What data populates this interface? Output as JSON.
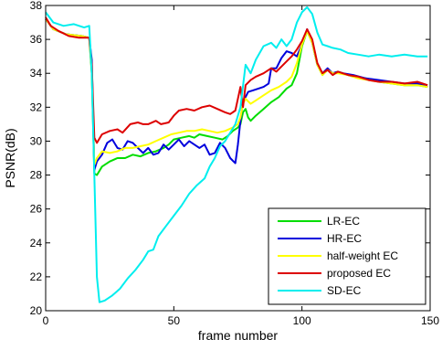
{
  "chart_data": {
    "type": "line",
    "xlabel": "frame number",
    "ylabel": "PSNR(dB)",
    "xlim": [
      0,
      150
    ],
    "ylim": [
      20,
      38
    ],
    "x_ticks": [
      0,
      50,
      100,
      150
    ],
    "y_ticks": [
      20,
      22,
      24,
      26,
      28,
      30,
      32,
      34,
      36,
      38
    ],
    "grid": false,
    "legend_position": "bottom-right",
    "series": [
      {
        "name": "LR-EC",
        "color": "#00dd00",
        "points": [
          [
            0,
            37.2
          ],
          [
            3,
            36.6
          ],
          [
            8,
            36.3
          ],
          [
            14,
            36.2
          ],
          [
            17,
            36.1
          ],
          [
            18,
            34.0
          ],
          [
            19,
            28.1
          ],
          [
            20,
            28.0
          ],
          [
            22,
            28.5
          ],
          [
            25,
            28.8
          ],
          [
            28,
            29.0
          ],
          [
            31,
            29.0
          ],
          [
            34,
            29.2
          ],
          [
            37,
            29.1
          ],
          [
            40,
            29.3
          ],
          [
            43,
            29.4
          ],
          [
            46,
            29.6
          ],
          [
            48,
            29.8
          ],
          [
            50,
            30.1
          ],
          [
            53,
            30.2
          ],
          [
            56,
            30.3
          ],
          [
            58,
            30.2
          ],
          [
            60,
            30.4
          ],
          [
            63,
            30.3
          ],
          [
            66,
            30.2
          ],
          [
            69,
            30.1
          ],
          [
            71,
            30.3
          ],
          [
            73,
            30.6
          ],
          [
            75,
            30.8
          ],
          [
            76,
            31.0
          ],
          [
            77,
            31.7
          ],
          [
            78,
            31.9
          ],
          [
            79,
            31.4
          ],
          [
            80,
            31.2
          ],
          [
            82,
            31.5
          ],
          [
            85,
            31.9
          ],
          [
            88,
            32.3
          ],
          [
            91,
            32.6
          ],
          [
            94,
            33.1
          ],
          [
            96,
            33.3
          ],
          [
            98,
            34.0
          ],
          [
            100,
            35.6
          ],
          [
            102,
            36.5
          ],
          [
            104,
            35.8
          ],
          [
            106,
            34.5
          ],
          [
            108,
            33.9
          ],
          [
            110,
            34.2
          ],
          [
            112,
            34.0
          ],
          [
            114,
            34.1
          ],
          [
            116,
            34.0
          ],
          [
            120,
            33.8
          ],
          [
            125,
            33.7
          ],
          [
            130,
            33.5
          ],
          [
            135,
            33.4
          ],
          [
            140,
            33.3
          ],
          [
            145,
            33.3
          ],
          [
            149,
            33.2
          ]
        ]
      },
      {
        "name": "HR-EC",
        "color": "#0000dd",
        "points": [
          [
            0,
            37.2
          ],
          [
            3,
            36.6
          ],
          [
            8,
            36.3
          ],
          [
            14,
            36.2
          ],
          [
            17,
            36.1
          ],
          [
            18,
            34.8
          ],
          [
            19,
            28.3
          ],
          [
            20,
            28.8
          ],
          [
            22,
            29.2
          ],
          [
            24,
            29.9
          ],
          [
            26,
            30.1
          ],
          [
            28,
            29.6
          ],
          [
            30,
            29.5
          ],
          [
            32,
            30.0
          ],
          [
            34,
            29.9
          ],
          [
            36,
            29.6
          ],
          [
            38,
            29.3
          ],
          [
            40,
            29.6
          ],
          [
            42,
            29.2
          ],
          [
            44,
            29.3
          ],
          [
            46,
            29.8
          ],
          [
            48,
            29.5
          ],
          [
            50,
            29.8
          ],
          [
            52,
            30.1
          ],
          [
            54,
            29.7
          ],
          [
            56,
            30.0
          ],
          [
            58,
            29.8
          ],
          [
            60,
            29.6
          ],
          [
            62,
            29.8
          ],
          [
            64,
            29.2
          ],
          [
            66,
            29.3
          ],
          [
            68,
            29.9
          ],
          [
            70,
            29.6
          ],
          [
            72,
            29.0
          ],
          [
            74,
            28.7
          ],
          [
            75,
            29.8
          ],
          [
            76,
            31.2
          ],
          [
            77,
            32.4
          ],
          [
            78,
            32.6
          ],
          [
            79,
            32.9
          ],
          [
            81,
            33.0
          ],
          [
            83,
            33.1
          ],
          [
            85,
            33.2
          ],
          [
            87,
            33.4
          ],
          [
            88,
            34.3
          ],
          [
            90,
            34.3
          ],
          [
            92,
            34.9
          ],
          [
            94,
            35.3
          ],
          [
            96,
            35.2
          ],
          [
            98,
            35.0
          ],
          [
            100,
            35.7
          ],
          [
            102,
            36.6
          ],
          [
            104,
            35.8
          ],
          [
            106,
            34.5
          ],
          [
            108,
            34.0
          ],
          [
            110,
            34.3
          ],
          [
            112,
            34.0
          ],
          [
            114,
            34.1
          ],
          [
            116,
            34.0
          ],
          [
            120,
            33.9
          ],
          [
            125,
            33.7
          ],
          [
            130,
            33.6
          ],
          [
            135,
            33.5
          ],
          [
            140,
            33.4
          ],
          [
            145,
            33.4
          ],
          [
            149,
            33.2
          ]
        ]
      },
      {
        "name": "half-weight EC",
        "color": "#ffff00",
        "points": [
          [
            0,
            37.2
          ],
          [
            3,
            36.6
          ],
          [
            8,
            36.3
          ],
          [
            14,
            36.2
          ],
          [
            17,
            36.1
          ],
          [
            18,
            34.3
          ],
          [
            19,
            28.6
          ],
          [
            20,
            29.0
          ],
          [
            22,
            29.4
          ],
          [
            25,
            29.3
          ],
          [
            28,
            29.4
          ],
          [
            31,
            29.6
          ],
          [
            34,
            29.6
          ],
          [
            37,
            29.7
          ],
          [
            40,
            29.8
          ],
          [
            43,
            30.0
          ],
          [
            46,
            30.2
          ],
          [
            49,
            30.4
          ],
          [
            52,
            30.5
          ],
          [
            55,
            30.6
          ],
          [
            58,
            30.6
          ],
          [
            61,
            30.7
          ],
          [
            64,
            30.6
          ],
          [
            67,
            30.5
          ],
          [
            70,
            30.6
          ],
          [
            73,
            30.8
          ],
          [
            75,
            31.0
          ],
          [
            76,
            31.4
          ],
          [
            77,
            32.2
          ],
          [
            78,
            32.5
          ],
          [
            80,
            32.2
          ],
          [
            82,
            32.4
          ],
          [
            85,
            32.7
          ],
          [
            88,
            33.0
          ],
          [
            91,
            33.2
          ],
          [
            94,
            33.5
          ],
          [
            96,
            33.8
          ],
          [
            98,
            34.6
          ],
          [
            100,
            35.7
          ],
          [
            102,
            36.5
          ],
          [
            104,
            35.8
          ],
          [
            106,
            34.5
          ],
          [
            108,
            33.9
          ],
          [
            110,
            34.2
          ],
          [
            112,
            34.0
          ],
          [
            114,
            34.0
          ],
          [
            118,
            33.9
          ],
          [
            122,
            33.7
          ],
          [
            126,
            33.6
          ],
          [
            130,
            33.5
          ],
          [
            135,
            33.4
          ],
          [
            140,
            33.3
          ],
          [
            145,
            33.3
          ],
          [
            149,
            33.2
          ]
        ]
      },
      {
        "name": "proposed EC",
        "color": "#dd0000",
        "points": [
          [
            0,
            37.3
          ],
          [
            2,
            36.8
          ],
          [
            5,
            36.5
          ],
          [
            9,
            36.2
          ],
          [
            13,
            36.1
          ],
          [
            17,
            36.1
          ],
          [
            18,
            34.5
          ],
          [
            19,
            30.2
          ],
          [
            20,
            29.9
          ],
          [
            22,
            30.4
          ],
          [
            25,
            30.6
          ],
          [
            28,
            30.7
          ],
          [
            30,
            30.5
          ],
          [
            33,
            31.0
          ],
          [
            36,
            31.1
          ],
          [
            38,
            31.0
          ],
          [
            40,
            31.0
          ],
          [
            43,
            31.2
          ],
          [
            45,
            31.0
          ],
          [
            48,
            31.1
          ],
          [
            50,
            31.5
          ],
          [
            52,
            31.8
          ],
          [
            55,
            31.9
          ],
          [
            58,
            31.8
          ],
          [
            61,
            32.0
          ],
          [
            64,
            32.1
          ],
          [
            67,
            31.9
          ],
          [
            70,
            31.7
          ],
          [
            72,
            31.6
          ],
          [
            74,
            31.8
          ],
          [
            75,
            32.5
          ],
          [
            76,
            33.2
          ],
          [
            77,
            32.0
          ],
          [
            78,
            33.3
          ],
          [
            80,
            33.6
          ],
          [
            82,
            33.8
          ],
          [
            85,
            34.0
          ],
          [
            88,
            34.3
          ],
          [
            90,
            34.1
          ],
          [
            92,
            34.4
          ],
          [
            94,
            34.7
          ],
          [
            96,
            35.0
          ],
          [
            98,
            35.4
          ],
          [
            100,
            35.9
          ],
          [
            102,
            36.6
          ],
          [
            104,
            36.0
          ],
          [
            106,
            34.6
          ],
          [
            108,
            34.0
          ],
          [
            110,
            34.2
          ],
          [
            112,
            33.9
          ],
          [
            114,
            34.1
          ],
          [
            118,
            33.9
          ],
          [
            122,
            33.8
          ],
          [
            126,
            33.6
          ],
          [
            130,
            33.5
          ],
          [
            135,
            33.5
          ],
          [
            140,
            33.4
          ],
          [
            145,
            33.5
          ],
          [
            149,
            33.3
          ]
        ]
      },
      {
        "name": "SD-EC",
        "color": "#00eeee",
        "points": [
          [
            0,
            37.6
          ],
          [
            3,
            37.0
          ],
          [
            7,
            36.8
          ],
          [
            11,
            36.9
          ],
          [
            15,
            36.7
          ],
          [
            17,
            36.8
          ],
          [
            18,
            34.0
          ],
          [
            19,
            28.0
          ],
          [
            20,
            22.0
          ],
          [
            21,
            20.5
          ],
          [
            23,
            20.6
          ],
          [
            26,
            20.9
          ],
          [
            29,
            21.3
          ],
          [
            32,
            21.9
          ],
          [
            35,
            22.4
          ],
          [
            38,
            23.0
          ],
          [
            40,
            23.5
          ],
          [
            42,
            23.6
          ],
          [
            44,
            24.4
          ],
          [
            47,
            25.0
          ],
          [
            50,
            25.6
          ],
          [
            53,
            26.2
          ],
          [
            56,
            26.9
          ],
          [
            59,
            27.4
          ],
          [
            62,
            27.8
          ],
          [
            64,
            28.5
          ],
          [
            66,
            29.0
          ],
          [
            68,
            29.7
          ],
          [
            70,
            30.0
          ],
          [
            72,
            30.5
          ],
          [
            74,
            31.0
          ],
          [
            76,
            32.0
          ],
          [
            78,
            34.5
          ],
          [
            80,
            34.0
          ],
          [
            82,
            34.8
          ],
          [
            85,
            35.6
          ],
          [
            88,
            35.8
          ],
          [
            90,
            35.5
          ],
          [
            92,
            36.0
          ],
          [
            94,
            35.6
          ],
          [
            96,
            36.0
          ],
          [
            98,
            37.0
          ],
          [
            100,
            37.6
          ],
          [
            102,
            37.9
          ],
          [
            104,
            37.5
          ],
          [
            106,
            36.4
          ],
          [
            108,
            35.7
          ],
          [
            110,
            35.6
          ],
          [
            112,
            35.5
          ],
          [
            115,
            35.4
          ],
          [
            118,
            35.2
          ],
          [
            122,
            35.1
          ],
          [
            126,
            35.0
          ],
          [
            130,
            35.1
          ],
          [
            135,
            35.0
          ],
          [
            140,
            35.1
          ],
          [
            145,
            35.0
          ],
          [
            149,
            35.0
          ]
        ]
      }
    ]
  }
}
